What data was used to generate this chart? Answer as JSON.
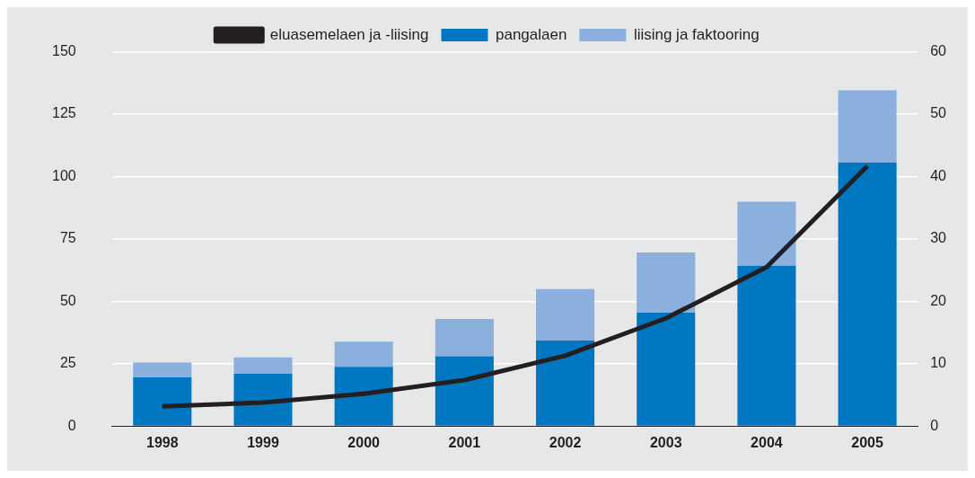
{
  "chart_data": {
    "type": "bar",
    "stacked": true,
    "categories": [
      "1998",
      "1999",
      "2000",
      "2001",
      "2002",
      "2003",
      "2004",
      "2005"
    ],
    "series": [
      {
        "name": "pangalaen",
        "color": "#0077c0",
        "values": [
          19.6,
          21,
          23.8,
          28,
          34.3,
          45.5,
          64.3,
          105.6
        ]
      },
      {
        "name": "liising ja faktooring",
        "color": "#8bb0de",
        "values": [
          5.9,
          6.6,
          10.1,
          15,
          20.6,
          24.1,
          25.6,
          29
        ]
      },
      {
        "name": "eluasemelaen ja -liising",
        "type": "line",
        "axis": "y2",
        "color": "#231f20",
        "values": [
          3.2,
          3.8,
          5.2,
          7.4,
          11.3,
          17.3,
          25.5,
          41.7
        ]
      }
    ],
    "ylim": [
      0,
      150
    ],
    "yticks": [
      0,
      25,
      50,
      75,
      100,
      125,
      150
    ],
    "y2lim": [
      0,
      60
    ],
    "y2ticks": [
      0,
      10,
      20,
      30,
      40,
      50,
      60
    ],
    "grid": "y",
    "legend": "top"
  }
}
